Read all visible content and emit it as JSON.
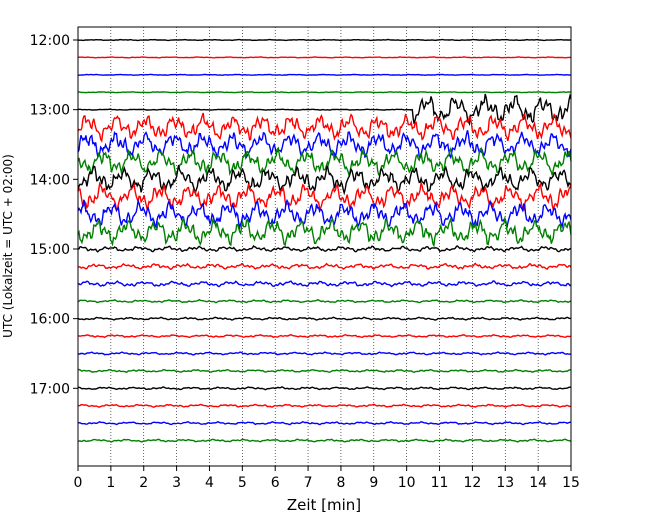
{
  "chart_data": {
    "type": "line",
    "title": "",
    "xlabel": "Zeit  [min]",
    "ylabel": "UTC (Lokalzeit = UTC + 02:00)",
    "xlim": [
      0,
      15
    ],
    "ylim_hours": [
      12.0,
      17.9
    ],
    "x_ticks": [
      "0",
      "1",
      "2",
      "3",
      "4",
      "5",
      "6",
      "7",
      "8",
      "9",
      "10",
      "11",
      "12",
      "13",
      "14",
      "15"
    ],
    "y_ticks": [
      {
        "label": "12:00",
        "hour": 12
      },
      {
        "label": "13:00",
        "hour": 13
      },
      {
        "label": "14:00",
        "hour": 14
      },
      {
        "label": "15:00",
        "hour": 15
      },
      {
        "label": "16:00",
        "hour": 16
      },
      {
        "label": "17:00",
        "hour": 17
      }
    ],
    "grid": "vertical dotted",
    "color_cycle": [
      "#000000",
      "#ff0000",
      "#0000ff",
      "#008000"
    ],
    "traces": [
      {
        "start": "12:00",
        "activity": "quiet"
      },
      {
        "start": "12:15",
        "activity": "quiet"
      },
      {
        "start": "12:30",
        "activity": "quiet"
      },
      {
        "start": "12:45",
        "activity": "quiet"
      },
      {
        "start": "13:00",
        "activity": "quiet",
        "burst_from_min": 10.2
      },
      {
        "start": "13:15",
        "activity": "strong"
      },
      {
        "start": "13:30",
        "activity": "strong"
      },
      {
        "start": "13:45",
        "activity": "strong"
      },
      {
        "start": "14:00",
        "activity": "strong"
      },
      {
        "start": "14:15",
        "activity": "strong"
      },
      {
        "start": "14:30",
        "activity": "strong"
      },
      {
        "start": "14:45",
        "activity": "strong"
      },
      {
        "start": "15:00",
        "activity": "moderate"
      },
      {
        "start": "15:15",
        "activity": "moderate"
      },
      {
        "start": "15:30",
        "activity": "moderate"
      },
      {
        "start": "15:45",
        "activity": "low"
      },
      {
        "start": "16:00",
        "activity": "low"
      },
      {
        "start": "16:15",
        "activity": "low"
      },
      {
        "start": "16:30",
        "activity": "low"
      },
      {
        "start": "16:45",
        "activity": "low"
      },
      {
        "start": "17:00",
        "activity": "low"
      },
      {
        "start": "17:15",
        "activity": "low"
      },
      {
        "start": "17:30",
        "activity": "low"
      },
      {
        "start": "17:45",
        "activity": "low"
      }
    ]
  }
}
